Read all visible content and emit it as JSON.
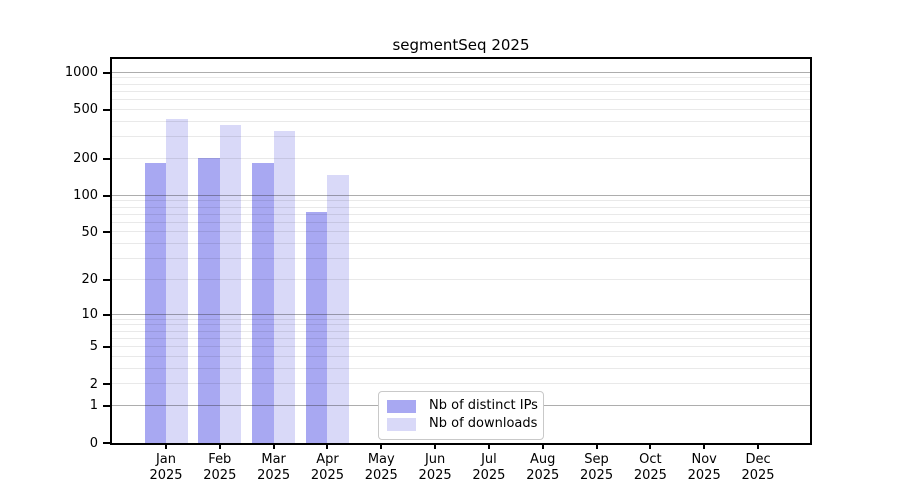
{
  "title": "segmentSeq 2025",
  "legend": {
    "items": [
      {
        "label": "Nb of distinct IPs"
      },
      {
        "label": "Nb of downloads"
      }
    ]
  },
  "chart_data": {
    "type": "bar",
    "title": "segmentSeq 2025",
    "y_scale": "log10(1+x)",
    "categories": [
      "Jan 2025",
      "Feb 2025",
      "Mar 2025",
      "Apr 2025",
      "May 2025",
      "Jun 2025",
      "Jul 2025",
      "Aug 2025",
      "Sep 2025",
      "Oct 2025",
      "Nov 2025",
      "Dec 2025"
    ],
    "series": [
      {
        "name": "Nb of distinct IPs",
        "color": "#a8a8f2",
        "values": [
          185,
          205,
          186,
          74,
          null,
          null,
          null,
          null,
          null,
          null,
          null,
          null
        ]
      },
      {
        "name": "Nb of downloads",
        "color": "#d9d9f8",
        "values": [
          420,
          378,
          340,
          149,
          null,
          null,
          null,
          null,
          null,
          null,
          null,
          null
        ]
      }
    ],
    "y_ticks": [
      0,
      1,
      2,
      5,
      10,
      20,
      50,
      100,
      200,
      500,
      1000
    ],
    "minor_grid_values": [
      2,
      3,
      4,
      5,
      6,
      7,
      8,
      9,
      20,
      30,
      40,
      50,
      60,
      70,
      80,
      90,
      200,
      300,
      400,
      500,
      600,
      700,
      800,
      900
    ],
    "decade_grid_values": [
      1,
      10,
      100,
      1000
    ],
    "ylim": [
      0,
      1294
    ],
    "grid": "horizontal",
    "legend_position": "inside-bottom-center"
  }
}
